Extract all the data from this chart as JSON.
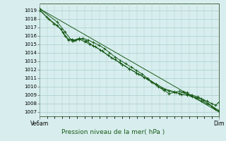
{
  "title": "Pression niveau de la mer( hPa )",
  "xlabel_left": "Ve6am",
  "xlabel_right": "Dim",
  "ylim": [
    1006.5,
    1019.8
  ],
  "yticks": [
    1007,
    1008,
    1009,
    1010,
    1011,
    1012,
    1013,
    1014,
    1015,
    1016,
    1017,
    1018,
    1019
  ],
  "xlim": [
    0,
    1.0
  ],
  "bg_color": "#d8eeee",
  "plot_bg": "#d8eeee",
  "grid_color": "#aacccc",
  "grid_color_minor": "#c4e0e0",
  "line_color": "#1a5c1a",
  "marker_color": "#1a5c1a",
  "lines": [
    [
      0.0,
      1019.1,
      0.04,
      1018.2,
      0.08,
      1017.4,
      0.12,
      1016.8,
      0.14,
      1016.0,
      0.16,
      1015.5,
      0.18,
      1015.6,
      0.2,
      1015.5,
      0.22,
      1015.6,
      0.24,
      1015.7,
      0.27,
      1015.5,
      0.3,
      1015.2,
      0.33,
      1014.9,
      0.36,
      1014.5,
      0.39,
      1014.0,
      0.42,
      1013.5,
      0.45,
      1013.1,
      0.48,
      1012.7,
      0.51,
      1012.3,
      0.54,
      1011.9,
      0.57,
      1011.5,
      0.6,
      1011.0,
      0.63,
      1010.5,
      0.66,
      1010.0,
      0.69,
      1009.6,
      0.72,
      1009.2,
      0.75,
      1009.3,
      0.78,
      1009.5,
      0.8,
      1009.3,
      0.82,
      1009.1,
      0.85,
      1009.0,
      0.88,
      1008.8,
      0.9,
      1008.6,
      0.93,
      1008.3,
      0.96,
      1008.0,
      0.98,
      1007.8,
      1.0,
      1008.2
    ],
    [
      0.0,
      1019.0,
      0.05,
      1018.0,
      0.1,
      1017.2,
      0.13,
      1016.4,
      0.16,
      1015.6,
      0.19,
      1015.4,
      0.22,
      1015.6,
      0.25,
      1015.3,
      0.28,
      1015.0,
      0.31,
      1014.7,
      0.34,
      1014.3,
      0.38,
      1013.7,
      0.42,
      1013.2,
      0.46,
      1012.6,
      0.5,
      1012.1,
      0.54,
      1011.6,
      0.58,
      1011.1,
      0.62,
      1010.6,
      0.65,
      1010.2,
      0.68,
      1009.8,
      0.72,
      1009.5,
      0.76,
      1009.3,
      0.79,
      1009.1,
      0.82,
      1009.0,
      0.85,
      1008.8,
      0.88,
      1008.7,
      0.91,
      1008.4,
      0.94,
      1008.0,
      0.97,
      1007.5,
      1.0,
      1007.2
    ],
    [
      0.0,
      1019.2,
      0.1,
      1017.6,
      0.14,
      1016.5,
      0.18,
      1015.4,
      0.22,
      1015.7,
      0.26,
      1015.4,
      0.3,
      1014.8,
      0.35,
      1014.2,
      0.4,
      1013.4,
      0.45,
      1012.8,
      0.5,
      1012.1,
      0.55,
      1011.5,
      0.6,
      1010.9,
      0.65,
      1010.3,
      0.7,
      1009.7,
      0.75,
      1009.4,
      0.78,
      1009.2,
      0.8,
      1009.4,
      0.82,
      1009.3,
      0.84,
      1009.0,
      0.87,
      1008.7,
      0.9,
      1008.3,
      0.93,
      1008.0,
      0.96,
      1007.7,
      0.98,
      1007.3,
      1.0,
      1007.1
    ],
    [
      0.0,
      1019.2,
      1.0,
      1007.0
    ]
  ],
  "marker_line_indices": [
    0,
    1,
    2
  ],
  "no_marker_indices": [
    3
  ],
  "figsize": [
    3.2,
    2.0
  ],
  "dpi": 100
}
